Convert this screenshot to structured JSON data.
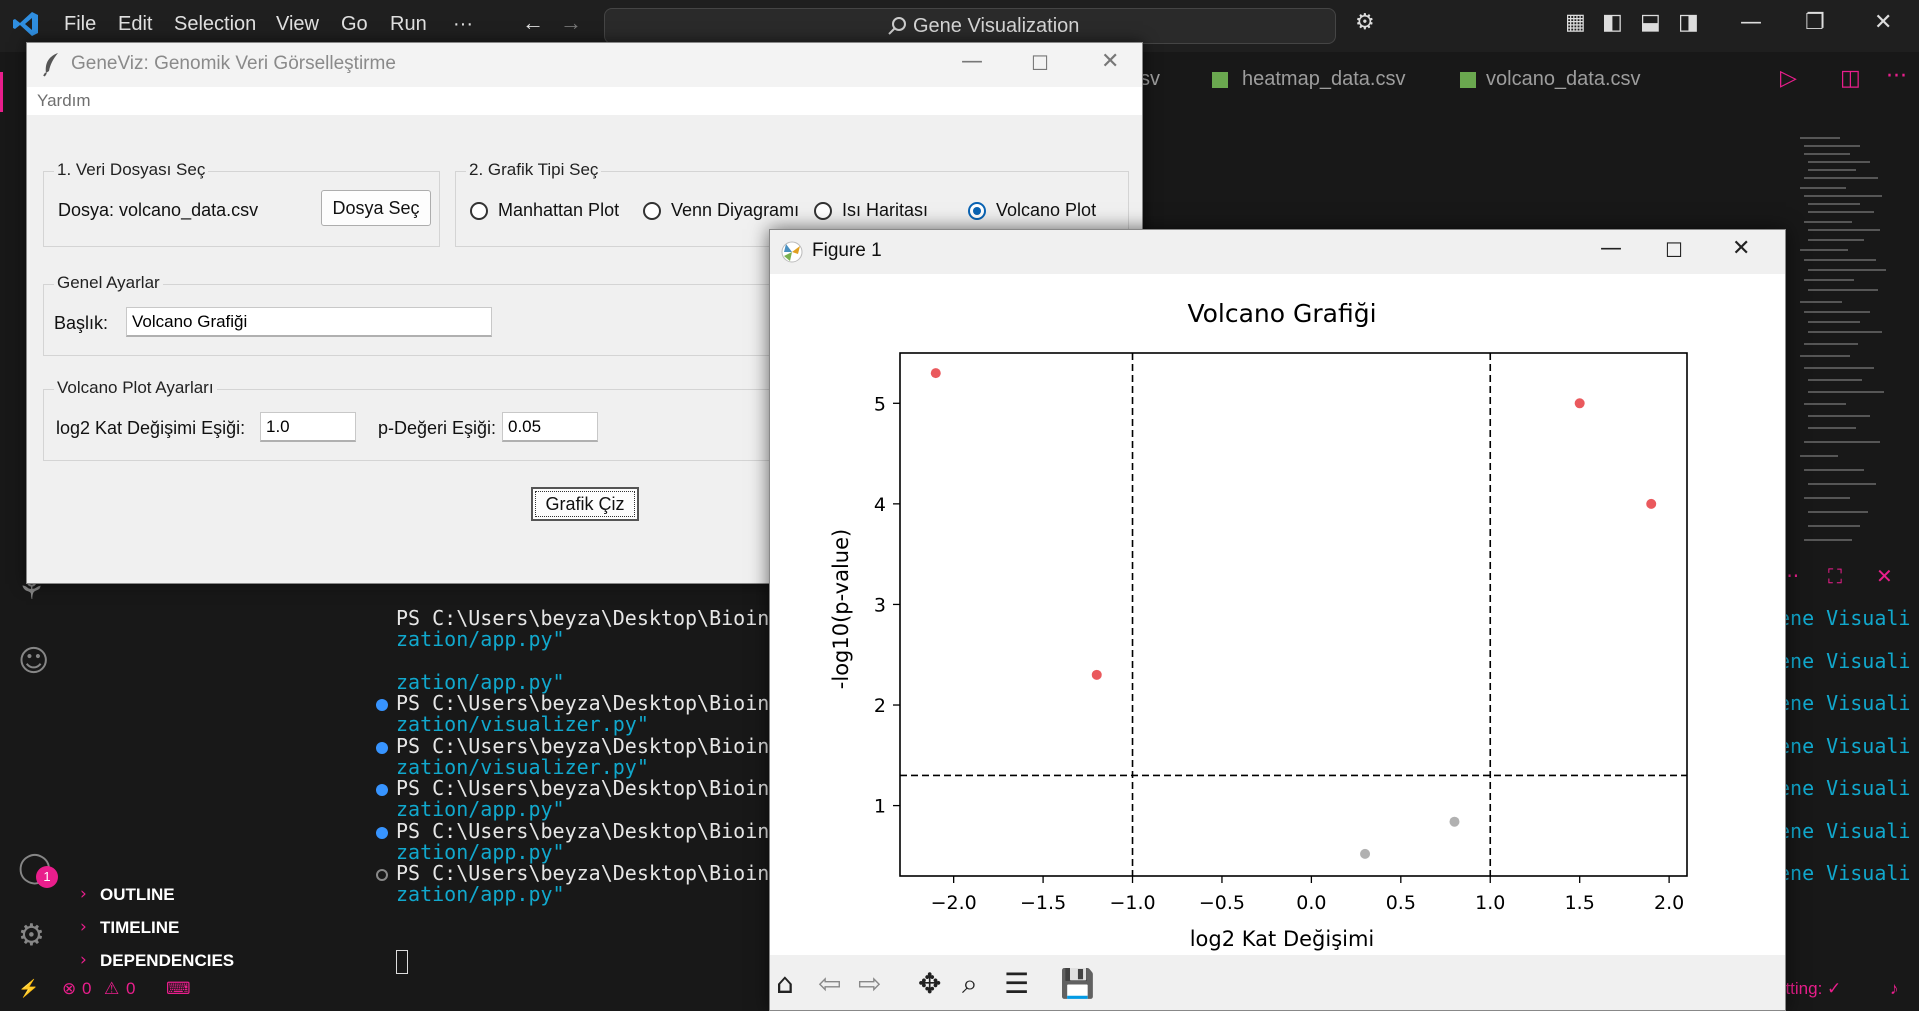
{
  "vscode": {
    "menu": [
      "File",
      "Edit",
      "Selection",
      "View",
      "Go",
      "Run",
      "···"
    ],
    "search_text": "Gene Visualization",
    "tabs": [
      "sv",
      "heatmap_data.csv",
      "volcano_data.csv"
    ],
    "sidebar_sections": [
      "OUTLINE",
      "TIMELINE",
      "DEPENDENCIES"
    ],
    "account_badge": "1",
    "status": {
      "errors": "0",
      "warnings": "0",
      "right": "atting: ✓"
    },
    "terminal": {
      "lines": [
        {
          "prompt": "PS C:\\Users\\beyza\\Desktop\\Bioinfor",
          "cont": "zation/app.py\"",
          "dot": "none"
        },
        {
          "prompt": "",
          "cont": "zation/app.py\"",
          "dot": "none"
        },
        {
          "prompt": "PS C:\\Users\\beyza\\Desktop\\Bioinfor",
          "cont": "zation/visualizer.py\"",
          "dot": "blue"
        },
        {
          "prompt": "PS C:\\Users\\beyza\\Desktop\\Bioinfor",
          "cont": "zation/visualizer.py\"",
          "dot": "blue"
        },
        {
          "prompt": "PS C:\\Users\\beyza\\Desktop\\Bioinfor",
          "cont": "zation/app.py\"",
          "dot": "blue"
        },
        {
          "prompt": "PS C:\\Users\\beyza\\Desktop\\Bioinfor",
          "cont": "zation/app.py\"",
          "dot": "blue"
        },
        {
          "prompt": "PS C:\\Users\\beyza\\Desktop\\Bioinfor",
          "cont": "zation/app.py\"",
          "dot": "gray"
        }
      ],
      "right_fragment": "ene Visuali"
    }
  },
  "geneviz": {
    "title": "GeneViz: Genomik Veri Görselleştirme",
    "menu": "Yardım",
    "file_frame": {
      "title": "1. Veri Dosyası Seç",
      "file_label": "Dosya: volcano_data.csv",
      "button": "Dosya Seç"
    },
    "type_frame": {
      "title": "2. Grafik Tipi Seç",
      "options": [
        "Manhattan Plot",
        "Venn Diyagramı",
        "Isı Haritası",
        "Volcano Plot"
      ],
      "selected": 3
    },
    "general": {
      "title": "Genel Ayarlar",
      "title_label": "Başlık:",
      "title_value": "Volcano Grafiği"
    },
    "volcano": {
      "title": "Volcano Plot Ayarları",
      "fc_label": "log2 Kat Değişimi Eşiği:",
      "fc_value": "1.0",
      "p_label": "p-Değeri Eşiği:",
      "p_value": "0.05"
    },
    "draw_button": "Grafik Çiz"
  },
  "figure": {
    "window_title": "Figure 1",
    "toolbar": [
      "home-icon",
      "back-icon",
      "forward-icon",
      "pan-icon",
      "zoom-icon",
      "configure-icon",
      "save-icon"
    ]
  },
  "chart_data": {
    "type": "scatter",
    "title": "Volcano Grafiği",
    "xlabel": "log2 Kat Değişimi",
    "ylabel": "-log10(p-value)",
    "xlim": [
      -2.3,
      2.1
    ],
    "ylim": [
      0.3,
      5.5
    ],
    "xticks": [
      "−2.0",
      "−1.5",
      "−1.0",
      "−0.5",
      "0.0",
      "0.5",
      "1.0",
      "1.5",
      "2.0"
    ],
    "xtick_values": [
      -2.0,
      -1.5,
      -1.0,
      -0.5,
      0.0,
      0.5,
      1.0,
      1.5,
      2.0
    ],
    "yticks": [
      "1",
      "2",
      "3",
      "4",
      "5"
    ],
    "ytick_values": [
      1,
      2,
      3,
      4,
      5
    ],
    "threshold_lines": {
      "x": [
        -1.0,
        1.0
      ],
      "y": 1.3
    },
    "points": [
      {
        "x": -2.1,
        "y": 5.3,
        "color": "#e8474b"
      },
      {
        "x": -1.2,
        "y": 2.3,
        "color": "#e8474b"
      },
      {
        "x": 0.3,
        "y": 0.52,
        "color": "#a9a9a9"
      },
      {
        "x": 0.8,
        "y": 0.84,
        "color": "#a9a9a9"
      },
      {
        "x": 1.5,
        "y": 5.0,
        "color": "#e8474b"
      },
      {
        "x": 1.9,
        "y": 4.0,
        "color": "#e8474b"
      }
    ],
    "grid": false
  }
}
